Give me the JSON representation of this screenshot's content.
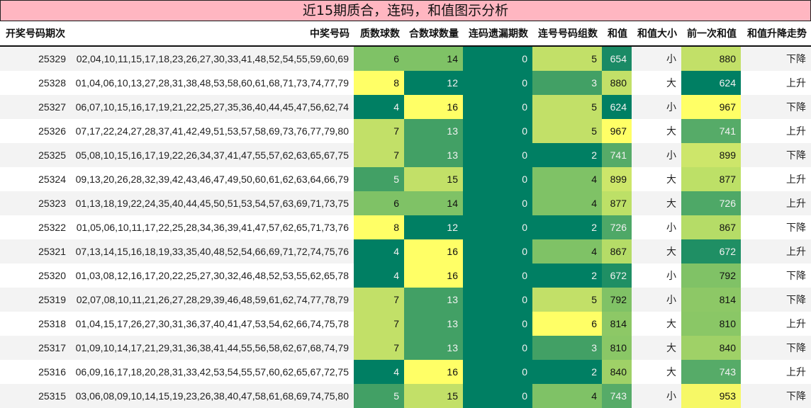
{
  "title": "近15期质合，连码，和值图示分析",
  "headers": {
    "period": "开奖号码期次",
    "numbers": "中奖号码",
    "prime": "质数球数",
    "composite": "合数球数量",
    "consec_miss": "连码遗漏期数",
    "consec_groups": "连号号码组数",
    "sum": "和值",
    "size": "和值大小",
    "prev_sum": "前一次和值",
    "trend": "和值升降走势"
  },
  "colors": {
    "title_bg": "#ffb6c1",
    "dark_green": "#007f63",
    "mid_green": "#42a065",
    "green": "#7fc266",
    "light_green": "#c2e068",
    "yellow": "#ffff66",
    "row_alt": "#f3f3f3"
  },
  "rows": [
    {
      "period": "25329",
      "numbers": "02,04,10,11,15,17,18,23,26,27,30,33,41,48,52,54,55,59,60,69",
      "prime": "6",
      "composite": "14",
      "consec_miss": "0",
      "consec_groups": "5",
      "sum": "654",
      "size": "小",
      "prev_sum": "880",
      "trend": "下降",
      "c": {
        "prime": "#7fc266",
        "composite": "#7fc266",
        "miss": "#007f63",
        "groups": "#c2e068",
        "sum": "#1a8a65",
        "prev": "#c2e068"
      }
    },
    {
      "period": "25328",
      "numbers": "01,04,06,10,13,27,28,31,38,48,53,58,60,61,68,71,73,74,77,79",
      "prime": "8",
      "composite": "12",
      "consec_miss": "0",
      "consec_groups": "3",
      "sum": "880",
      "size": "大",
      "prev_sum": "624",
      "trend": "上升",
      "c": {
        "prime": "#ffff66",
        "composite": "#007f63",
        "miss": "#007f63",
        "groups": "#42a065",
        "sum": "#c2e068",
        "prev": "#007f63"
      }
    },
    {
      "period": "25327",
      "numbers": "06,07,10,15,16,17,19,21,22,25,27,35,36,40,44,45,47,56,62,74",
      "prime": "4",
      "composite": "16",
      "consec_miss": "0",
      "consec_groups": "5",
      "sum": "624",
      "size": "小",
      "prev_sum": "967",
      "trend": "下降",
      "c": {
        "prime": "#007f63",
        "composite": "#ffff66",
        "miss": "#007f63",
        "groups": "#c2e068",
        "sum": "#007f63",
        "prev": "#ffff66"
      }
    },
    {
      "period": "25326",
      "numbers": "07,17,22,24,27,28,37,41,42,49,51,53,57,58,69,73,76,77,79,80",
      "prime": "7",
      "composite": "13",
      "consec_miss": "0",
      "consec_groups": "5",
      "sum": "967",
      "size": "大",
      "prev_sum": "741",
      "trend": "上升",
      "c": {
        "prime": "#c2e068",
        "composite": "#42a065",
        "miss": "#007f63",
        "groups": "#c2e068",
        "sum": "#ffff66",
        "prev": "#56ab68"
      }
    },
    {
      "period": "25325",
      "numbers": "05,08,10,15,16,17,19,22,26,34,37,41,47,55,57,62,63,65,67,75",
      "prime": "7",
      "composite": "13",
      "consec_miss": "0",
      "consec_groups": "2",
      "sum": "741",
      "size": "小",
      "prev_sum": "899",
      "trend": "下降",
      "c": {
        "prime": "#c2e068",
        "composite": "#42a065",
        "miss": "#007f63",
        "groups": "#007f63",
        "sum": "#56ab68",
        "prev": "#cde66a"
      }
    },
    {
      "period": "25324",
      "numbers": "09,13,20,26,28,32,39,42,43,46,47,49,50,60,61,62,63,64,66,79",
      "prime": "5",
      "composite": "15",
      "consec_miss": "0",
      "consec_groups": "4",
      "sum": "899",
      "size": "大",
      "prev_sum": "877",
      "trend": "上升",
      "c": {
        "prime": "#42a065",
        "composite": "#c2e068",
        "miss": "#007f63",
        "groups": "#7fc266",
        "sum": "#cde66a",
        "prev": "#bde067"
      }
    },
    {
      "period": "25323",
      "numbers": "01,13,18,19,22,24,35,40,44,45,50,51,53,54,57,63,69,71,73,75",
      "prime": "6",
      "composite": "14",
      "consec_miss": "0",
      "consec_groups": "4",
      "sum": "877",
      "size": "大",
      "prev_sum": "726",
      "trend": "上升",
      "c": {
        "prime": "#7fc266",
        "composite": "#7fc266",
        "miss": "#007f63",
        "groups": "#7fc266",
        "sum": "#bde067",
        "prev": "#4ea867"
      }
    },
    {
      "period": "25322",
      "numbers": "01,05,06,10,11,17,22,25,28,34,36,39,41,47,57,62,65,71,73,76",
      "prime": "8",
      "composite": "12",
      "consec_miss": "0",
      "consec_groups": "2",
      "sum": "726",
      "size": "小",
      "prev_sum": "867",
      "trend": "下降",
      "c": {
        "prime": "#ffff66",
        "composite": "#007f63",
        "miss": "#007f63",
        "groups": "#007f63",
        "sum": "#4ea867",
        "prev": "#b5dc67"
      }
    },
    {
      "period": "25321",
      "numbers": "07,13,14,15,16,18,19,33,35,40,48,52,54,66,69,71,72,74,75,76",
      "prime": "4",
      "composite": "16",
      "consec_miss": "0",
      "consec_groups": "4",
      "sum": "867",
      "size": "大",
      "prev_sum": "672",
      "trend": "上升",
      "c": {
        "prime": "#007f63",
        "composite": "#ffff66",
        "miss": "#007f63",
        "groups": "#7fc266",
        "sum": "#b5dc67",
        "prev": "#1f8f64"
      }
    },
    {
      "period": "25320",
      "numbers": "01,03,08,12,16,17,20,22,25,27,30,32,46,48,52,53,55,62,65,78",
      "prime": "4",
      "composite": "16",
      "consec_miss": "0",
      "consec_groups": "2",
      "sum": "672",
      "size": "小",
      "prev_sum": "792",
      "trend": "下降",
      "c": {
        "prime": "#007f63",
        "composite": "#ffff66",
        "miss": "#007f63",
        "groups": "#007f63",
        "sum": "#1f8f64",
        "prev": "#80c266"
      }
    },
    {
      "period": "25319",
      "numbers": "02,07,08,10,11,21,26,27,28,29,39,46,48,59,61,62,74,77,78,79",
      "prime": "7",
      "composite": "13",
      "consec_miss": "0",
      "consec_groups": "5",
      "sum": "792",
      "size": "小",
      "prev_sum": "814",
      "trend": "下降",
      "c": {
        "prime": "#c2e068",
        "composite": "#42a065",
        "miss": "#007f63",
        "groups": "#c2e068",
        "sum": "#80c266",
        "prev": "#8dc866"
      }
    },
    {
      "period": "25318",
      "numbers": "01,04,15,17,26,27,30,31,36,37,40,41,47,53,54,62,66,74,75,78",
      "prime": "7",
      "composite": "13",
      "consec_miss": "0",
      "consec_groups": "6",
      "sum": "814",
      "size": "大",
      "prev_sum": "810",
      "trend": "上升",
      "c": {
        "prime": "#c2e068",
        "composite": "#42a065",
        "miss": "#007f63",
        "groups": "#ffff66",
        "sum": "#8dc866",
        "prev": "#8ac766"
      }
    },
    {
      "period": "25317",
      "numbers": "01,09,10,14,17,21,29,31,36,38,41,44,55,56,58,62,67,68,74,79",
      "prime": "7",
      "composite": "13",
      "consec_miss": "0",
      "consec_groups": "3",
      "sum": "810",
      "size": "大",
      "prev_sum": "840",
      "trend": "下降",
      "c": {
        "prime": "#c2e068",
        "composite": "#42a065",
        "miss": "#007f63",
        "groups": "#42a065",
        "sum": "#8ac766",
        "prev": "#9fd167"
      }
    },
    {
      "period": "25316",
      "numbers": "06,09,16,17,18,20,28,31,33,42,53,54,55,57,60,62,65,67,72,75",
      "prime": "4",
      "composite": "16",
      "consec_miss": "0",
      "consec_groups": "2",
      "sum": "840",
      "size": "大",
      "prev_sum": "743",
      "trend": "上升",
      "c": {
        "prime": "#007f63",
        "composite": "#ffff66",
        "miss": "#007f63",
        "groups": "#007f63",
        "sum": "#9fd167",
        "prev": "#56ab68"
      }
    },
    {
      "period": "25315",
      "numbers": "03,06,08,09,10,14,15,19,23,26,38,40,47,58,61,68,69,74,75,80",
      "prime": "5",
      "composite": "15",
      "consec_miss": "0",
      "consec_groups": "4",
      "sum": "743",
      "size": "小",
      "prev_sum": "953",
      "trend": "下降",
      "c": {
        "prime": "#42a065",
        "composite": "#c2e068",
        "miss": "#007f63",
        "groups": "#7fc266",
        "sum": "#56ab68",
        "prev": "#f6f866"
      }
    }
  ]
}
